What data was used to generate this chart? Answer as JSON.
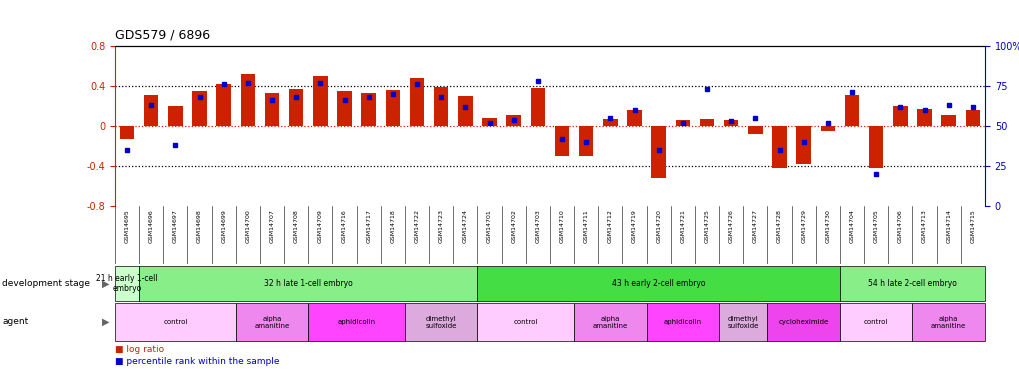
{
  "title": "GDS579 / 6896",
  "samples": [
    "GSM14695",
    "GSM14696",
    "GSM14697",
    "GSM14698",
    "GSM14699",
    "GSM14700",
    "GSM14707",
    "GSM14708",
    "GSM14709",
    "GSM14716",
    "GSM14717",
    "GSM14718",
    "GSM14722",
    "GSM14723",
    "GSM14724",
    "GSM14701",
    "GSM14702",
    "GSM14703",
    "GSM14710",
    "GSM14711",
    "GSM14712",
    "GSM14719",
    "GSM14720",
    "GSM14721",
    "GSM14725",
    "GSM14726",
    "GSM14727",
    "GSM14728",
    "GSM14729",
    "GSM14730",
    "GSM14704",
    "GSM14705",
    "GSM14706",
    "GSM14713",
    "GSM14714",
    "GSM14715"
  ],
  "log_ratio": [
    -0.13,
    0.31,
    0.2,
    0.35,
    0.42,
    0.52,
    0.33,
    0.37,
    0.5,
    0.35,
    0.33,
    0.36,
    0.48,
    0.39,
    0.3,
    0.08,
    0.11,
    0.38,
    -0.3,
    -0.3,
    0.07,
    0.16,
    -0.52,
    0.06,
    0.07,
    0.06,
    -0.08,
    -0.42,
    -0.38,
    -0.05,
    0.31,
    -0.42,
    0.2,
    0.17,
    0.11,
    0.16
  ],
  "percentile": [
    35,
    63,
    38,
    68,
    76,
    77,
    66,
    68,
    77,
    66,
    68,
    70,
    76,
    68,
    62,
    52,
    54,
    78,
    42,
    40,
    55,
    60,
    35,
    52,
    73,
    53,
    55,
    35,
    40,
    52,
    71,
    20,
    62,
    60,
    63,
    62
  ],
  "ylim_left": [
    -0.8,
    0.8
  ],
  "ylim_right": [
    0,
    100
  ],
  "yticks_left": [
    -0.8,
    -0.4,
    0.0,
    0.4,
    0.8
  ],
  "yticks_right": [
    0,
    25,
    50,
    75,
    100
  ],
  "bar_color": "#cc2200",
  "dot_color": "#0000cc",
  "grid_color": "#000000",
  "zero_line_color": "#cc2200",
  "dev_stages": [
    {
      "label": "21 h early 1-cell\nembryo",
      "start": 0,
      "end": 1,
      "color": "#ccffcc"
    },
    {
      "label": "32 h late 1-cell embryo",
      "start": 1,
      "end": 15,
      "color": "#88ee88"
    },
    {
      "label": "43 h early 2-cell embryo",
      "start": 15,
      "end": 30,
      "color": "#44dd44"
    },
    {
      "label": "54 h late 2-cell embryo",
      "start": 30,
      "end": 36,
      "color": "#88ee88"
    }
  ],
  "agents": [
    {
      "label": "control",
      "start": 0,
      "end": 5,
      "color": "#ffccff"
    },
    {
      "label": "alpha\namanitine",
      "start": 5,
      "end": 8,
      "color": "#ee88ee"
    },
    {
      "label": "aphidicolin",
      "start": 8,
      "end": 12,
      "color": "#ff44ff"
    },
    {
      "label": "dimethyl\nsulfoxide",
      "start": 12,
      "end": 15,
      "color": "#ddaadd"
    },
    {
      "label": "control",
      "start": 15,
      "end": 19,
      "color": "#ffccff"
    },
    {
      "label": "alpha\namanitine",
      "start": 19,
      "end": 22,
      "color": "#ee88ee"
    },
    {
      "label": "aphidicolin",
      "start": 22,
      "end": 25,
      "color": "#ff44ff"
    },
    {
      "label": "dimethyl\nsulfoxide",
      "start": 25,
      "end": 27,
      "color": "#ddaadd"
    },
    {
      "label": "cycloheximide",
      "start": 27,
      "end": 30,
      "color": "#ee44ee"
    },
    {
      "label": "control",
      "start": 30,
      "end": 33,
      "color": "#ffccff"
    },
    {
      "label": "alpha\namanitine",
      "start": 33,
      "end": 36,
      "color": "#ee88ee"
    }
  ],
  "xtick_bg": "#dddddd",
  "background_color": "#ffffff",
  "label_dev_stage": "development stage",
  "label_agent": "agent",
  "legend_log_ratio": "log ratio",
  "legend_percentile": "percentile rank within the sample"
}
